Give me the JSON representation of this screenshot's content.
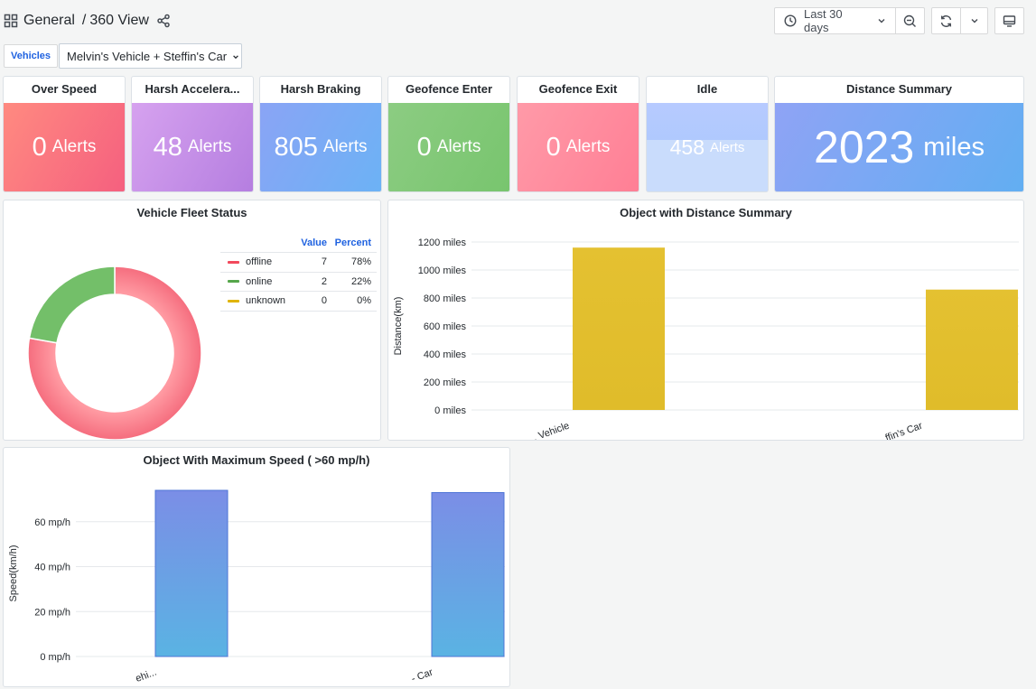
{
  "breadcrumb": {
    "folder": "General",
    "separator": "/",
    "dashboard": "360 View"
  },
  "toolbar": {
    "time_range": "Last 30 days"
  },
  "variables": {
    "label": "Vehicles",
    "selected": "Melvin's Vehicle + Steffin's Car"
  },
  "stats": [
    {
      "title": "Over Speed",
      "value": "0",
      "unit": "Alerts",
      "color": "#f7657f"
    },
    {
      "title": "Harsh Accelera...",
      "value": "48",
      "unit": "Alerts",
      "color": "#c28ce6"
    },
    {
      "title": "Harsh Braking",
      "value": "805",
      "unit": "Alerts",
      "color": "#7aa8f5"
    },
    {
      "title": "Geofence Enter",
      "value": "0",
      "unit": "Alerts",
      "color": "#82c978"
    },
    {
      "title": "Geofence Exit",
      "value": "0",
      "unit": "Alerts",
      "color": "#ff8799"
    },
    {
      "title": "Idle",
      "value": "458",
      "unit": "Alerts",
      "color": "#a9c6fc",
      "fill_fraction": 0.58
    }
  ],
  "distance_summary": {
    "title": "Distance Summary",
    "value": "2023",
    "unit": "miles"
  },
  "fleet_status": {
    "title": "Vehicle Fleet Status",
    "headers": {
      "value": "Value",
      "percent": "Percent"
    },
    "rows": [
      {
        "name": "offline",
        "value": "7",
        "percent": "78%",
        "color": "#f2495c"
      },
      {
        "name": "online",
        "value": "2",
        "percent": "22%",
        "color": "#56a64b"
      },
      {
        "name": "unknown",
        "value": "0",
        "percent": "0%",
        "color": "#e0b400"
      }
    ]
  },
  "chart_data": [
    {
      "type": "pie",
      "title": "Vehicle Fleet Status",
      "categories": [
        "offline",
        "online",
        "unknown"
      ],
      "values": [
        7,
        2,
        0
      ],
      "colors": [
        "#fb7d8a",
        "#73bf69",
        "#e0b400"
      ],
      "donut": true,
      "legend": "right"
    },
    {
      "type": "bar",
      "title": "Object with Distance Summary",
      "categories": [
        "Melvin's Vehicle",
        "Steffin's Car"
      ],
      "tick_labels": [
        ". Vehicle",
        "ffin's Car"
      ],
      "values": [
        1160,
        860
      ],
      "ylabel": "Distance(km)",
      "ylim": [
        0,
        1200
      ],
      "yticks": [
        0,
        200,
        400,
        600,
        800,
        1000,
        1200
      ],
      "ytick_labels": [
        "0 miles",
        "200 miles",
        "400 miles",
        "600 miles",
        "800 miles",
        "1000 miles",
        "1200 miles"
      ],
      "color": "#e3c02e",
      "grid": true
    },
    {
      "type": "bar",
      "title": "Object With Maximum Speed ( >60 mp/h)",
      "categories": [
        "Melvin's Vehicle",
        "Steffin's Car"
      ],
      "tick_labels": [
        "ehi...",
        "- Car"
      ],
      "values": [
        74,
        73
      ],
      "ylabel": "Speed(km/h)",
      "ylim": [
        0,
        74
      ],
      "yticks": [
        0,
        20,
        40,
        60
      ],
      "ytick_labels": [
        "0 mp/h",
        "20 mp/h",
        "40 mp/h",
        "60 mp/h"
      ],
      "color": "#6e8ee9",
      "grid": true
    }
  ]
}
